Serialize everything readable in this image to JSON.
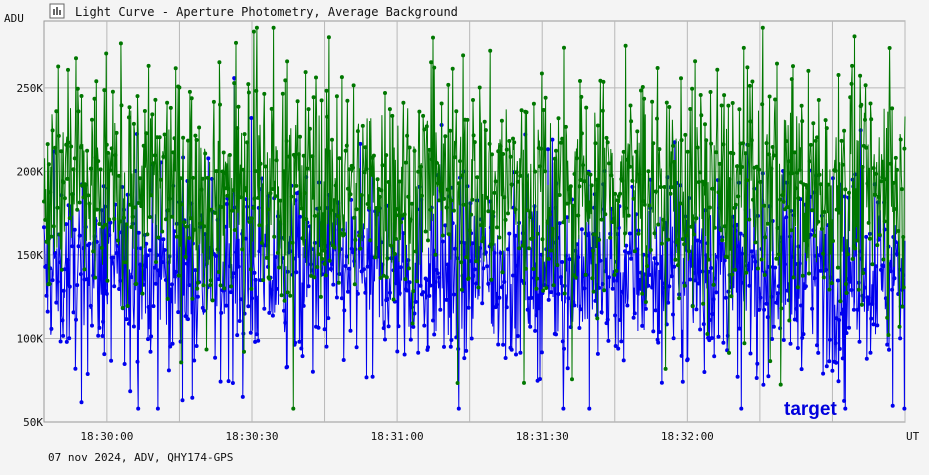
{
  "window": {
    "title": "Light Curve - Aperture Photometry, Average Background",
    "icon": "light-curve-icon"
  },
  "footer": {
    "info": "07 nov 2024, ADV, QHY174-GPS"
  },
  "chart_data": {
    "type": "line",
    "ylabel": "ADU",
    "xlabel": "UT",
    "grid": true,
    "ylim": [
      50000,
      290000
    ],
    "xlim": [
      "18:29:47",
      "18:32:45"
    ],
    "y_ticks": [
      {
        "value": 50000,
        "label": "50K"
      },
      {
        "value": 100000,
        "label": "100K"
      },
      {
        "value": 150000,
        "label": "150K"
      },
      {
        "value": 200000,
        "label": "200K"
      },
      {
        "value": 250000,
        "label": "250K"
      }
    ],
    "x_ticks": [
      {
        "value": "18:30:00",
        "label": "18:30:00"
      },
      {
        "value": "18:30:30",
        "label": "18:30:30"
      },
      {
        "value": "18:31:00",
        "label": "18:31:00"
      },
      {
        "value": "18:31:30",
        "label": "18:31:30"
      },
      {
        "value": "18:32:00",
        "label": "18:32:00"
      }
    ],
    "annotation": "target",
    "series": [
      {
        "color": "#0000ee",
        "typical_range": [
          95000,
          190000
        ],
        "mean": 140000
      },
      {
        "color": "#007700",
        "typical_range": [
          130000,
          250000
        ],
        "mean": 190000
      }
    ],
    "colors": {
      "background": "#f4f4f4",
      "grid": "#b8b8b8",
      "annotation": "#0000dd"
    }
  }
}
